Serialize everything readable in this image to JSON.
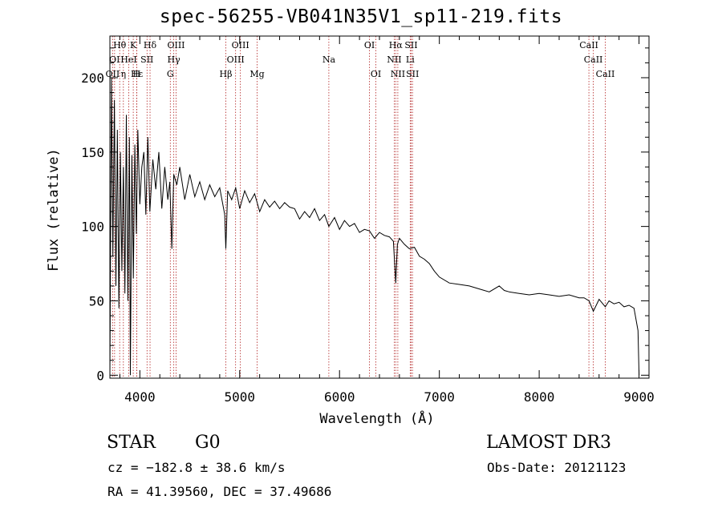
{
  "chart_data": {
    "type": "line",
    "title": "spec-56255-VB041N35V1_sp11-219.fits",
    "xlabel": "Wavelength (Å)",
    "ylabel": "Flux (relative)",
    "xlim": [
      3700,
      9100
    ],
    "ylim": [
      -2,
      228
    ],
    "xticks": [
      4000,
      5000,
      6000,
      7000,
      8000,
      9000
    ],
    "xtick_labels": [
      "4000",
      "5000",
      "6000",
      "7000",
      "8000",
      "9000"
    ],
    "yticks": [
      0,
      50,
      100,
      150,
      200
    ],
    "ytick_labels": [
      "0",
      "50",
      "100",
      "150",
      "200"
    ],
    "series": [
      {
        "name": "spectrum",
        "x": [
          3700,
          3715,
          3730,
          3745,
          3760,
          3775,
          3790,
          3805,
          3820,
          3835,
          3850,
          3865,
          3880,
          3895,
          3905,
          3920,
          3935,
          3950,
          3965,
          3980,
          4000,
          4020,
          4040,
          4060,
          4080,
          4100,
          4130,
          4160,
          4190,
          4220,
          4250,
          4280,
          4300,
          4320,
          4340,
          4370,
          4400,
          4450,
          4500,
          4550,
          4600,
          4650,
          4700,
          4750,
          4800,
          4850,
          4861,
          4880,
          4920,
          4960,
          5000,
          5050,
          5100,
          5150,
          5200,
          5250,
          5300,
          5350,
          5400,
          5450,
          5500,
          5550,
          5600,
          5650,
          5700,
          5750,
          5800,
          5850,
          5893,
          5950,
          6000,
          6050,
          6100,
          6150,
          6200,
          6250,
          6300,
          6350,
          6400,
          6450,
          6500,
          6540,
          6563,
          6580,
          6600,
          6650,
          6700,
          6750,
          6800,
          6850,
          6900,
          6950,
          7000,
          7100,
          7200,
          7300,
          7400,
          7500,
          7600,
          7650,
          7700,
          7800,
          7900,
          8000,
          8100,
          8200,
          8300,
          8400,
          8450,
          8500,
          8542,
          8600,
          8662,
          8700,
          8750,
          8800,
          8850,
          8900,
          8950,
          8990,
          9000
        ],
        "values": [
          0,
          200,
          80,
          185,
          60,
          165,
          45,
          150,
          70,
          140,
          55,
          175,
          50,
          160,
          0,
          148,
          65,
          155,
          95,
          165,
          115,
          140,
          150,
          108,
          160,
          110,
          145,
          125,
          150,
          112,
          140,
          118,
          130,
          85,
          135,
          128,
          140,
          118,
          135,
          120,
          130,
          118,
          128,
          120,
          126,
          108,
          85,
          124,
          118,
          126,
          112,
          124,
          116,
          122,
          110,
          118,
          113,
          117,
          112,
          116,
          113,
          112,
          105,
          110,
          106,
          112,
          104,
          108,
          100,
          106,
          98,
          104,
          100,
          102,
          96,
          98,
          97,
          92,
          96,
          94,
          93,
          90,
          62,
          88,
          92,
          88,
          85,
          86,
          80,
          78,
          75,
          70,
          66,
          62,
          61,
          60,
          58,
          56,
          60,
          57,
          56,
          55,
          54,
          55,
          54,
          53,
          54,
          52,
          52,
          50,
          43,
          51,
          46,
          50,
          48,
          49,
          46,
          47,
          45,
          30,
          0
        ]
      }
    ],
    "lines": [
      {
        "label": "Hθ",
        "wavelength": 3798,
        "row": 1
      },
      {
        "label": "OII",
        "wavelength": 3727,
        "row": 3
      },
      {
        "label": "OI",
        "wavelength": 3747,
        "row": 2
      },
      {
        "label": "Hε",
        "wavelength": 3970,
        "row": 3
      },
      {
        "label": "HeI",
        "wavelength": 3889,
        "row": 2
      },
      {
        "label": "η",
        "wavelength": 3835,
        "row": 3
      },
      {
        "label": "K",
        "wavelength": 3934,
        "row": 1
      },
      {
        "label": "H",
        "wavelength": 3969,
        "row": 3
      },
      {
        "label": "SII",
        "wavelength": 4072,
        "row": 2
      },
      {
        "label": "Hδ",
        "wavelength": 4102,
        "row": 1
      },
      {
        "label": "OIII",
        "wavelength": 4363,
        "row": 1
      },
      {
        "label": "Hγ",
        "wavelength": 4340,
        "row": 2
      },
      {
        "label": "G",
        "wavelength": 4305,
        "row": 3
      },
      {
        "label": "Hβ",
        "wavelength": 4861,
        "row": 3
      },
      {
        "label": "OIII",
        "wavelength": 4959,
        "row": 2
      },
      {
        "label": "OIII",
        "wavelength": 5007,
        "row": 1
      },
      {
        "label": "Mg",
        "wavelength": 5175,
        "row": 3
      },
      {
        "label": "Na",
        "wavelength": 5893,
        "row": 2
      },
      {
        "label": "OI",
        "wavelength": 6300,
        "row": 1
      },
      {
        "label": "OI",
        "wavelength": 6364,
        "row": 3
      },
      {
        "label": "Hα",
        "wavelength": 6563,
        "row": 1
      },
      {
        "label": "NII",
        "wavelength": 6548,
        "row": 2
      },
      {
        "label": "NII",
        "wavelength": 6584,
        "row": 3
      },
      {
        "label": "SII",
        "wavelength": 6717,
        "row": 1
      },
      {
        "label": "Li",
        "wavelength": 6708,
        "row": 2
      },
      {
        "label": "SII",
        "wavelength": 6731,
        "row": 3
      },
      {
        "label": "CaII",
        "wavelength": 8498,
        "row": 1
      },
      {
        "label": "CaII",
        "wavelength": 8542,
        "row": 2
      },
      {
        "label": "CaII",
        "wavelength": 8662,
        "row": 3
      }
    ]
  },
  "info": {
    "class": "STAR",
    "subclass": "G0",
    "survey": "LAMOST DR3",
    "cz": "cz = −182.8 ± 38.6 km/s",
    "obs_date": "Obs-Date: 20121123",
    "coords": "RA =  41.39560, DEC =  37.49686"
  },
  "colors": {
    "line_marker": "#b22222",
    "spectrum": "#000000",
    "axis": "#000000"
  }
}
